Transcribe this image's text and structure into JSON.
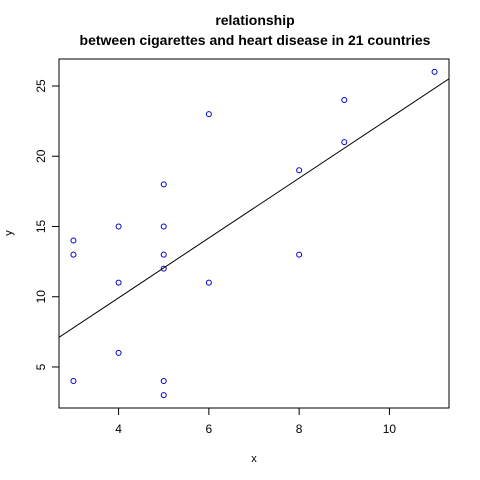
{
  "chart_data": {
    "type": "scatter",
    "title_line1": "relationship",
    "title_line2": "between cigarettes and heart disease in 21 countries",
    "xlabel": "x",
    "ylabel": "y",
    "xlim": [
      2.68,
      11.32
    ],
    "ylim": [
      2.08,
      26.92
    ],
    "x_ticks": [
      4,
      6,
      8,
      10
    ],
    "y_ticks": [
      5,
      10,
      15,
      20,
      25
    ],
    "grid": false,
    "legend": "none",
    "point_color": "#0000cc",
    "points": [
      {
        "x": 3,
        "y": 14
      },
      {
        "x": 3,
        "y": 13
      },
      {
        "x": 3,
        "y": 4
      },
      {
        "x": 4,
        "y": 15
      },
      {
        "x": 4,
        "y": 11
      },
      {
        "x": 4,
        "y": 6
      },
      {
        "x": 5,
        "y": 18
      },
      {
        "x": 5,
        "y": 15
      },
      {
        "x": 5,
        "y": 13
      },
      {
        "x": 5,
        "y": 12
      },
      {
        "x": 5,
        "y": 4
      },
      {
        "x": 5,
        "y": 3
      },
      {
        "x": 6,
        "y": 23
      },
      {
        "x": 6,
        "y": 11
      },
      {
        "x": 8,
        "y": 19
      },
      {
        "x": 8,
        "y": 13
      },
      {
        "x": 9,
        "y": 24
      },
      {
        "x": 9,
        "y": 21
      },
      {
        "x": 11,
        "y": 26
      }
    ],
    "regression_line": {
      "intercept": 1.4,
      "slope": 2.13,
      "color": "#000000"
    }
  }
}
